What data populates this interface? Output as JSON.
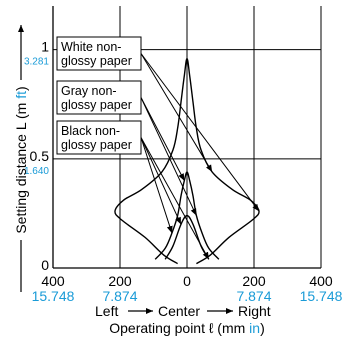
{
  "chart_data": {
    "type": "line",
    "xlabel": {
      "left": "Left",
      "center": "Center",
      "right": "Right",
      "title_prefix": "Operating point ℓ (mm",
      "title_alt_unit": "in",
      "title_suffix": ")"
    },
    "ylabel": {
      "prefix": "Setting distance L (m",
      "alt_unit": "ft",
      "suffix": ")"
    },
    "xlim": [
      -400,
      400
    ],
    "ylim": [
      0,
      1.2
    ],
    "grid": true,
    "x_ticks_mm": [
      {
        "value": -400,
        "label": "400"
      },
      {
        "value": -200,
        "label": "200"
      },
      {
        "value": 0,
        "label": "0"
      },
      {
        "value": 200,
        "label": "200"
      },
      {
        "value": 400,
        "label": "400"
      }
    ],
    "x_ticks_in": [
      {
        "value": -400,
        "label": "15.748"
      },
      {
        "value": -200,
        "label": "7.874"
      },
      {
        "value": 200,
        "label": "7.874"
      },
      {
        "value": 400,
        "label": "15.748"
      }
    ],
    "y_ticks_m": [
      {
        "value": 0,
        "label": "0"
      },
      {
        "value": 0.5,
        "label": "0.5"
      },
      {
        "value": 1,
        "label": "1"
      }
    ],
    "y_ticks_ft": [
      {
        "value": 0.5,
        "label": "1.640"
      },
      {
        "value": 1,
        "label": "3.281"
      }
    ],
    "accent_color": "#1a9bd7",
    "series": [
      {
        "name": "White non-glossy paper",
        "points": [
          [
            -28,
            0.02
          ],
          [
            -70,
            0.06
          ],
          [
            -125,
            0.14
          ],
          [
            -195,
            0.22
          ],
          [
            -215,
            0.26
          ],
          [
            -190,
            0.31
          ],
          [
            -135,
            0.36
          ],
          [
            -75,
            0.44
          ],
          [
            -42,
            0.54
          ],
          [
            -28,
            0.64
          ],
          [
            -18,
            0.76
          ],
          [
            -8,
            0.88
          ],
          [
            0,
            0.96
          ],
          [
            8,
            0.88
          ],
          [
            18,
            0.76
          ],
          [
            28,
            0.64
          ],
          [
            42,
            0.54
          ],
          [
            75,
            0.44
          ],
          [
            135,
            0.36
          ],
          [
            190,
            0.31
          ],
          [
            215,
            0.26
          ],
          [
            195,
            0.22
          ],
          [
            125,
            0.14
          ],
          [
            70,
            0.06
          ],
          [
            28,
            0.02
          ]
        ]
      },
      {
        "name": "Gray non-glossy paper",
        "points": [
          [
            -95,
            0.04
          ],
          [
            -65,
            0.09
          ],
          [
            -45,
            0.16
          ],
          [
            -28,
            0.24
          ],
          [
            -18,
            0.33
          ],
          [
            -8,
            0.4
          ],
          [
            0,
            0.44
          ],
          [
            8,
            0.4
          ],
          [
            18,
            0.33
          ],
          [
            28,
            0.24
          ],
          [
            45,
            0.16
          ],
          [
            65,
            0.09
          ],
          [
            95,
            0.04
          ]
        ]
      },
      {
        "name": "Black non-glossy paper",
        "points": [
          [
            -65,
            0.04
          ],
          [
            -42,
            0.1
          ],
          [
            -18,
            0.2
          ],
          [
            0,
            0.24
          ],
          [
            18,
            0.2
          ],
          [
            42,
            0.1
          ],
          [
            65,
            0.04
          ]
        ]
      }
    ],
    "legend": {
      "placement": "top-left",
      "entries": [
        {
          "line1": "White non-",
          "line2": "glossy paper"
        },
        {
          "line1": "Gray non-",
          "line2": "glossy paper"
        },
        {
          "line1": "Black non-",
          "line2": "glossy paper"
        }
      ]
    }
  }
}
